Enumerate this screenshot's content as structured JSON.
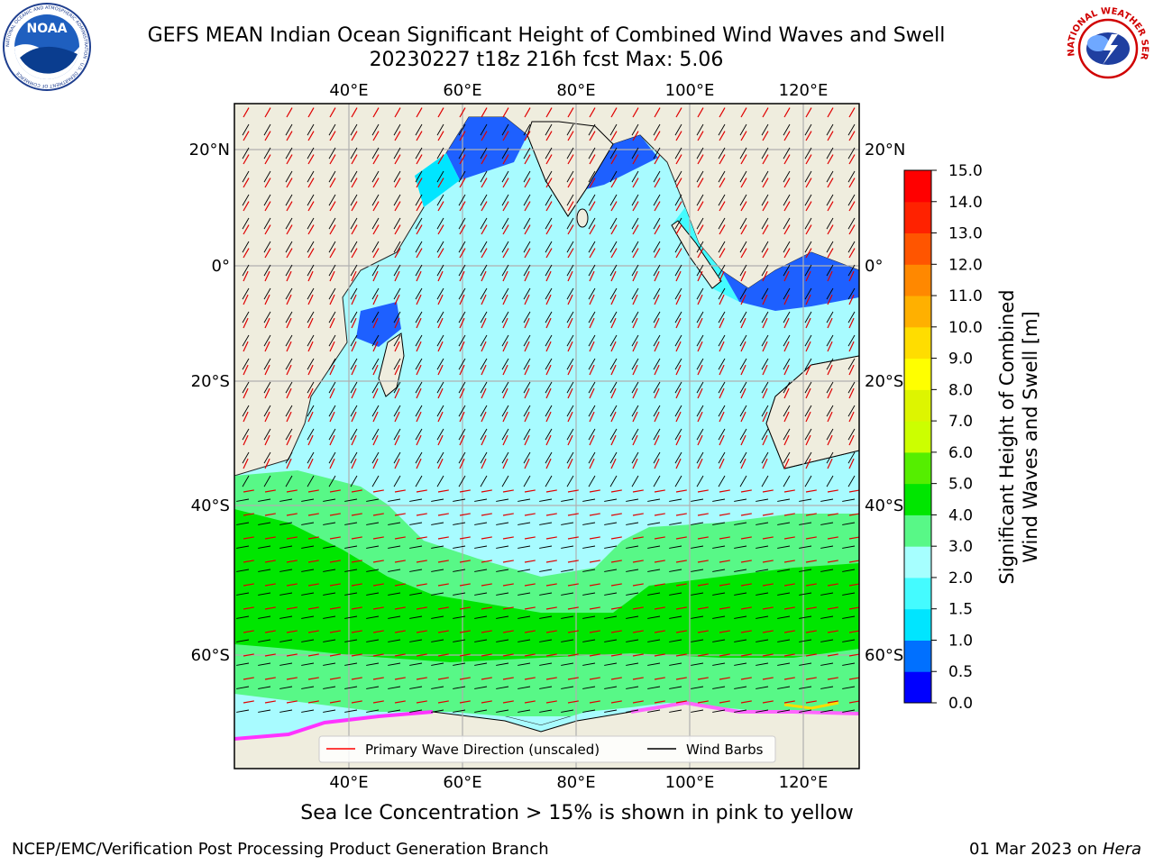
{
  "title": {
    "line1": "GEFS MEAN Indian Ocean Significant Height of Combined Wind Waves and Swell",
    "line2": "20230227 t18z 216h fcst   Max: 5.06"
  },
  "map": {
    "lon_ticks": [
      "40°E",
      "60°E",
      "80°E",
      "100°E",
      "120°E"
    ],
    "lat_ticks": [
      "20°N",
      "0°",
      "20°S",
      "40°S",
      "60°S"
    ],
    "legend": {
      "wave_direction_label": "Primary Wave Direction (unscaled)",
      "wind_barbs_label": "Wind Barbs",
      "wave_direction_color": "#ff0000",
      "wind_barbs_color": "#000000"
    },
    "land_color": "#efedde"
  },
  "colorbar": {
    "label_line1": "Significant Height of Combined",
    "label_line2": "Wind Waves and Swell [m]",
    "ticks": [
      "0.0",
      "0.5",
      "1.0",
      "1.5",
      "2.0",
      "3.0",
      "4.0",
      "5.0",
      "6.0",
      "7.0",
      "8.0",
      "9.0",
      "10.0",
      "11.0",
      "12.0",
      "13.0",
      "14.0",
      "15.0"
    ],
    "colors": [
      "#0000ff",
      "#0070ff",
      "#00e5ff",
      "#44fbff",
      "#a6ffff",
      "#58f887",
      "#00e600",
      "#55ee00",
      "#ccff00",
      "#ddf500",
      "#ffff00",
      "#ffdd00",
      "#ffb000",
      "#ff8800",
      "#ff5500",
      "#ff2200",
      "#ff0000"
    ]
  },
  "caption": "Sea Ice Concentration > 15% is shown in pink to yellow",
  "footer": {
    "left": "NCEP/EMC/Verification Post Processing Product Generation Branch",
    "right_date": "01 Mar 2023 on ",
    "right_host": "Hera"
  },
  "logos": {
    "noaa": "NOAA",
    "nws": "NATIONAL WEATHER SERVICE",
    "noaa_ring": "NATIONAL OCEANIC AND ATMOSPHERIC ADMINISTRATION · U.S. DEPARTMENT OF COMMERCE"
  }
}
